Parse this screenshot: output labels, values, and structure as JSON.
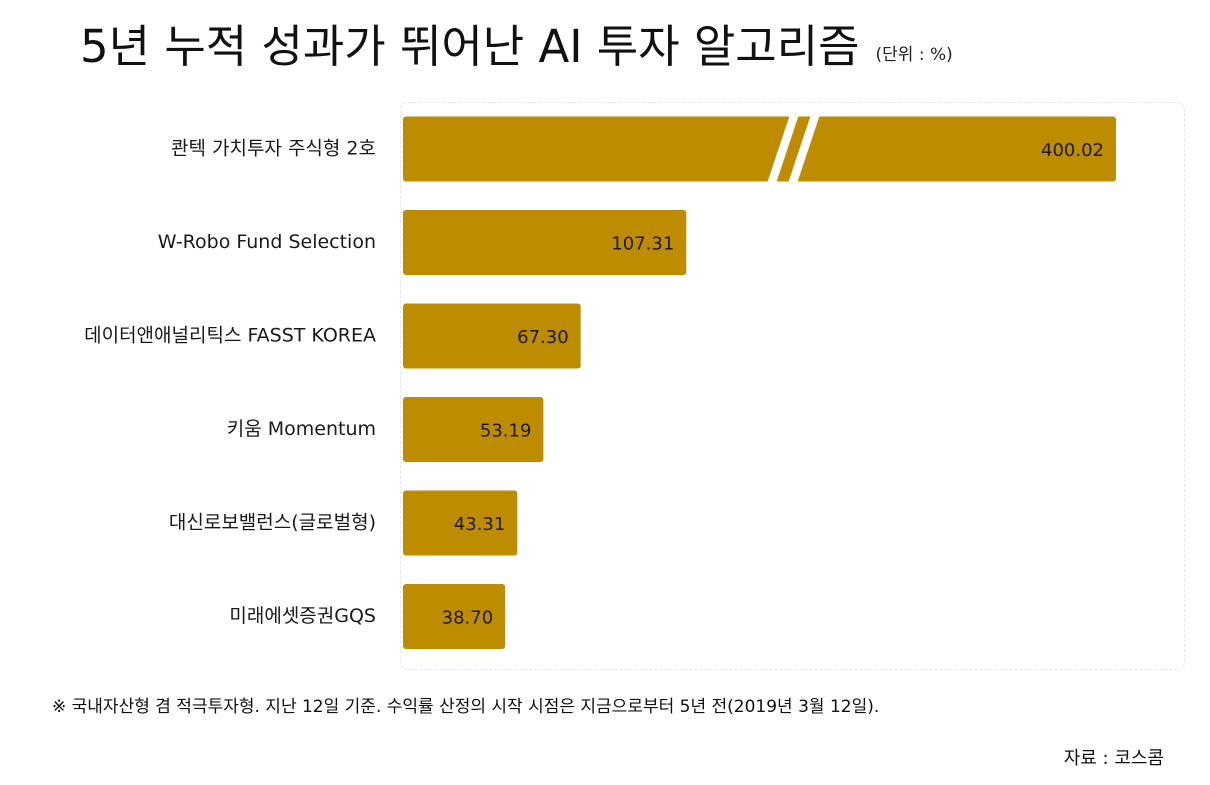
{
  "title": "5년 누적 성과가 뛰어난 AI 투자 알고리즘",
  "unit": "(단위 : %)",
  "footnote": "※ 국내자산형 겸 적극투자형. 지난 12일 기준. 수익률 산정의 시작 시점은 지금으로부터 5년 전(2019년 3월 12일).",
  "source": "자료 : 코스콤",
  "colors": {
    "bar": "#BE8C00",
    "text": "#1a1a1a"
  },
  "chart_data": {
    "type": "bar",
    "orientation": "horizontal",
    "categories": [
      "콴텍 가치투자 주식형 2호",
      "W-Robo Fund Selection",
      "데이터앤애널리틱스 FASST KOREA",
      "키움 Momentum",
      "대신로보밸런스(글로벌형)",
      "미래에셋증권GQS"
    ],
    "values": [
      400.02,
      107.31,
      67.3,
      53.19,
      43.31,
      38.7
    ],
    "value_labels": [
      "400.02",
      "107.31",
      "67.30",
      "53.19",
      "43.31",
      "38.70"
    ],
    "axis_break": {
      "category_index": 0
    },
    "grid": false
  }
}
